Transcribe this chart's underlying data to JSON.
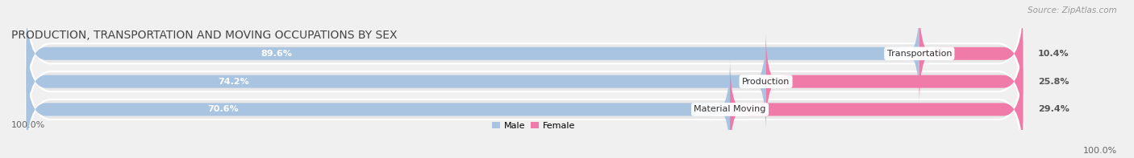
{
  "title": "PRODUCTION, TRANSPORTATION AND MOVING OCCUPATIONS BY SEX",
  "source": "Source: ZipAtlas.com",
  "categories": [
    "Transportation",
    "Production",
    "Material Moving"
  ],
  "male_values": [
    89.6,
    74.2,
    70.6
  ],
  "female_values": [
    10.4,
    25.8,
    29.4
  ],
  "male_color": "#a8c4e0",
  "female_color": "#f07oa8",
  "row_bg_color": "#e8e8e8",
  "row_border_color": "#ffffff",
  "fig_bg_color": "#f0f0f0",
  "title_color": "#444444",
  "source_color": "#999999",
  "male_label_color": "#ffffff",
  "female_label_color": "#555555",
  "cat_label_color": "#333333",
  "axis_label_color": "#666666",
  "title_fontsize": 10,
  "source_fontsize": 7.5,
  "bar_label_fontsize": 8,
  "cat_label_fontsize": 8,
  "axis_label_fontsize": 8,
  "legend_fontsize": 8,
  "left_label": "100.0%",
  "right_label": "100.0%"
}
